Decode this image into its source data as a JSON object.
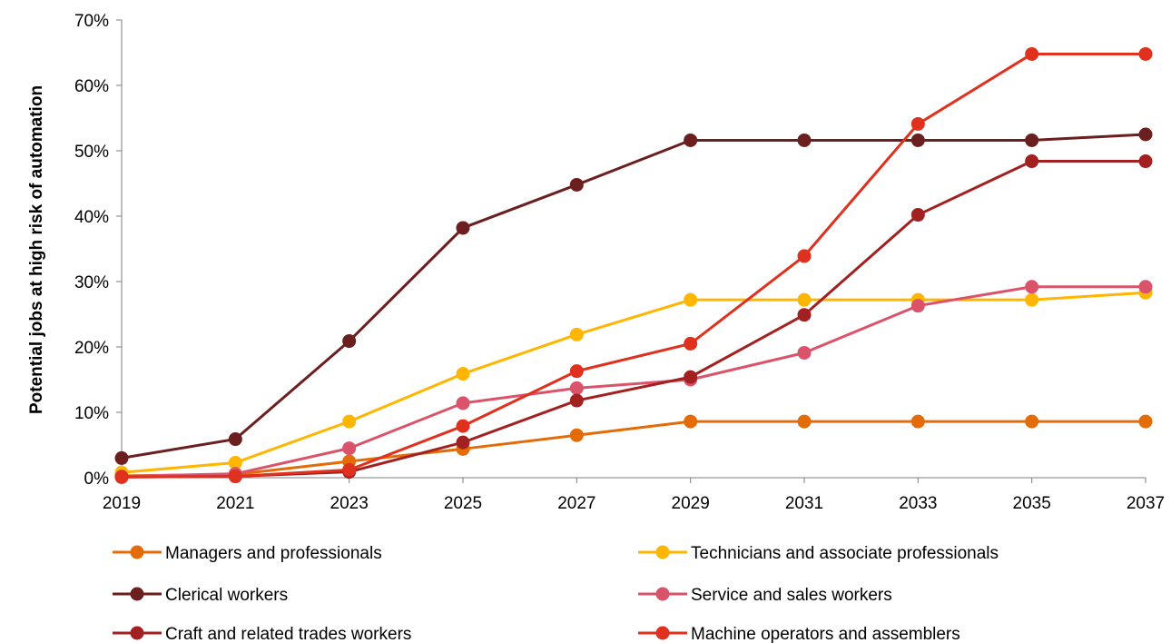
{
  "chart_data": {
    "type": "line",
    "title": "",
    "xlabel": "",
    "ylabel": "Potential jobs at high risk of automation",
    "x": [
      "2019",
      "2021",
      "2023",
      "2025",
      "2027",
      "2029",
      "2031",
      "2033",
      "2035",
      "2037"
    ],
    "ylim": [
      0,
      70
    ],
    "yticks": [
      "0%",
      "10%",
      "20%",
      "30%",
      "40%",
      "50%",
      "60%",
      "70%"
    ],
    "grid": false,
    "legend_position": "bottom",
    "series": [
      {
        "name": "Managers and professionals",
        "color": "#E36C09",
        "values": [
          0.3,
          0.5,
          2.5,
          4.4,
          6.5,
          8.6,
          8.6,
          8.6,
          8.6,
          8.6
        ]
      },
      {
        "name": "Technicians and associate professionals",
        "color": "#FFB600",
        "values": [
          0.8,
          2.3,
          8.6,
          15.9,
          21.9,
          27.2,
          27.2,
          27.2,
          27.2,
          28.3
        ]
      },
      {
        "name": "Clerical workers",
        "color": "#6B1F1F",
        "values": [
          3.0,
          5.9,
          20.9,
          38.2,
          44.8,
          51.6,
          51.6,
          51.6,
          51.6,
          52.5
        ]
      },
      {
        "name": "Service and sales workers",
        "color": "#DB536A",
        "values": [
          0.2,
          0.6,
          4.5,
          11.4,
          13.7,
          15.0,
          19.1,
          26.3,
          29.2,
          29.2
        ]
      },
      {
        "name": "Craft and related trades workers",
        "color": "#A32020",
        "values": [
          0.1,
          0.2,
          0.9,
          5.4,
          11.8,
          15.4,
          24.9,
          40.2,
          48.4,
          48.4
        ]
      },
      {
        "name": "Machine operators and assemblers",
        "color": "#E0301E",
        "values": [
          0.1,
          0.2,
          1.2,
          7.9,
          16.3,
          20.5,
          33.9,
          54.1,
          64.8,
          64.8
        ]
      }
    ]
  }
}
